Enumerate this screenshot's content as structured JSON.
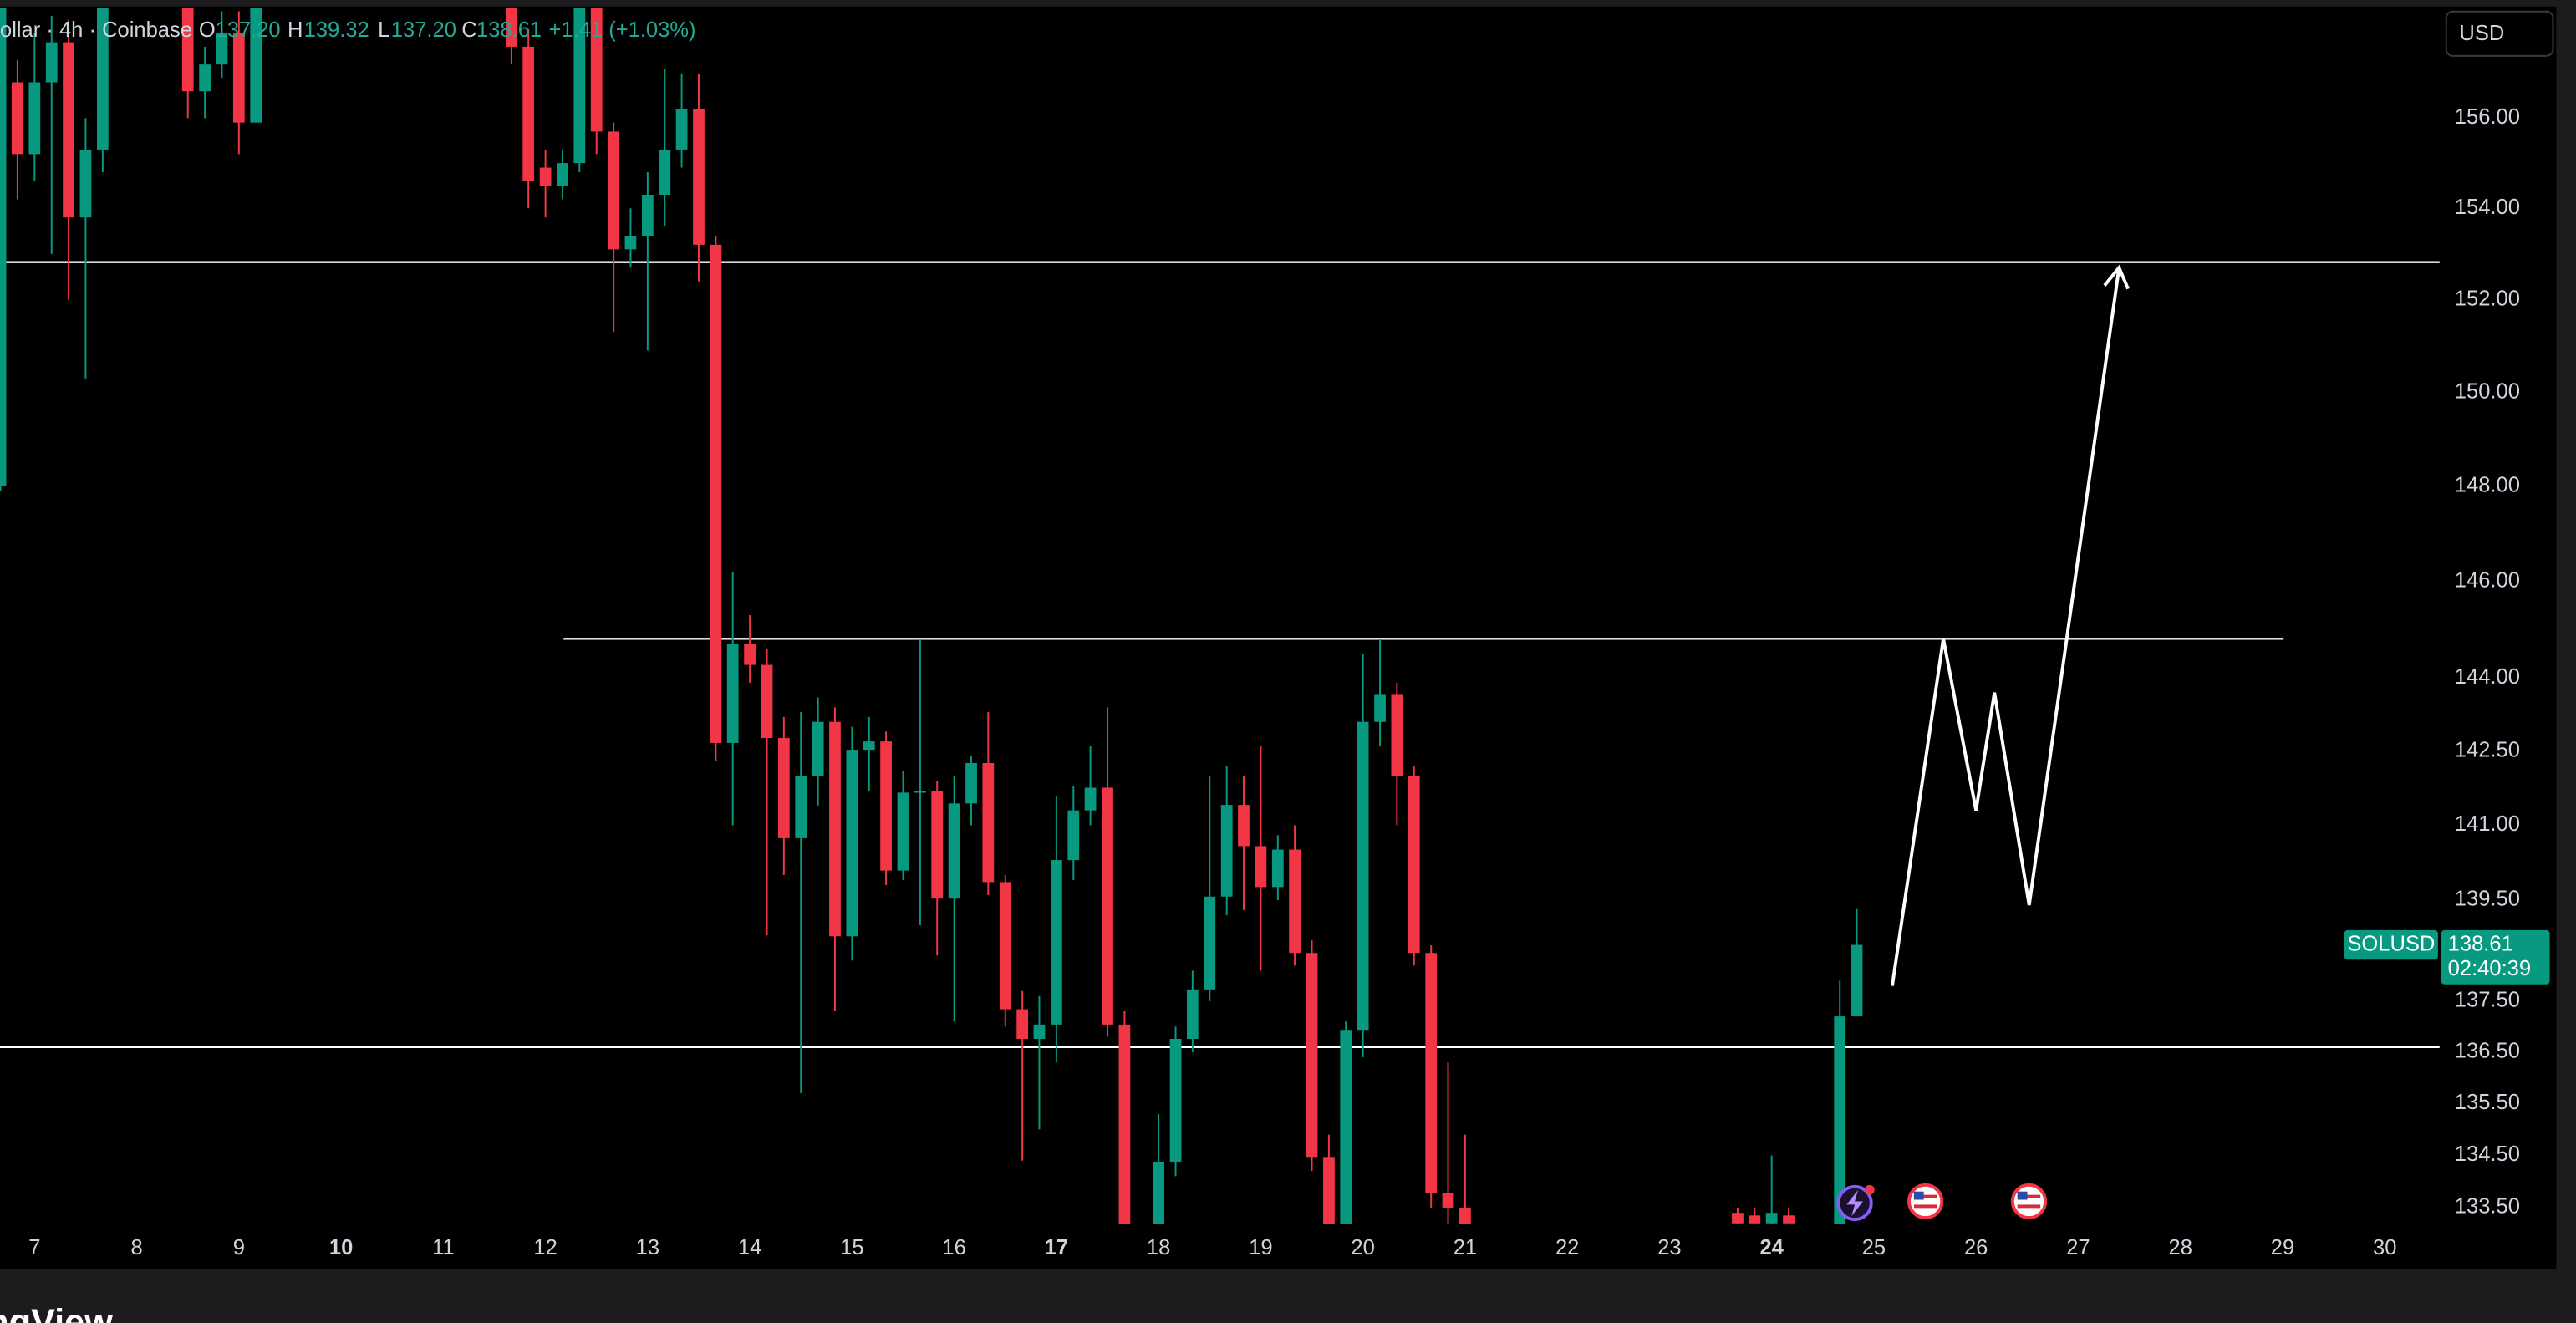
{
  "header": {
    "symbol": "ollar · 4h · Coinbase",
    "ohlc": [
      {
        "key": "O",
        "value": "137.20"
      },
      {
        "key": "H",
        "value": "139.32"
      },
      {
        "key": "L",
        "value": "137.20"
      },
      {
        "key": "C",
        "value": "138.61"
      }
    ],
    "change": "+1.41 (+1.03%)"
  },
  "currency": "USD",
  "footer": "ngView",
  "last_price": {
    "symbol": "SOLUSD",
    "value": 138.61,
    "countdown": "02:40:39"
  },
  "chart_data": {
    "type": "candlestick",
    "log_scale": true,
    "grid": false,
    "up_color": "#089981",
    "down_color": "#f23645",
    "xlim": [
      6.662,
      30.537
    ],
    "xticks": [
      7,
      8,
      9,
      10,
      11,
      12,
      13,
      14,
      15,
      16,
      17,
      18,
      19,
      20,
      21,
      22,
      23,
      24,
      25,
      26,
      27,
      28,
      29,
      30
    ],
    "bold_xticks": [
      10,
      17,
      24
    ],
    "ylim": [
      133.18,
      158.47
    ],
    "yticks": [
      {
        "value": 156,
        "label": "156.00"
      },
      {
        "value": 154,
        "label": "154.00"
      },
      {
        "value": 152,
        "label": "152.00"
      },
      {
        "value": 150,
        "label": "150.00"
      },
      {
        "value": 148,
        "label": "148.00"
      },
      {
        "value": 146,
        "label": "146.00"
      },
      {
        "value": 144,
        "label": "144.00"
      },
      {
        "value": 142.5,
        "label": "142.50"
      },
      {
        "value": 141,
        "label": "141.00"
      },
      {
        "value": 139.5,
        "label": "139.50"
      },
      {
        "value": 137.5,
        "label": "137.50"
      },
      {
        "value": 136.5,
        "label": "136.50"
      },
      {
        "value": 135.5,
        "label": "135.50"
      },
      {
        "value": 134.5,
        "label": "134.50"
      },
      {
        "value": 133.5,
        "label": "133.50"
      }
    ],
    "x": [
      6.667,
      6.833,
      7.0,
      7.167,
      7.333,
      7.5,
      7.667,
      8.5,
      8.667,
      8.833,
      9.0,
      9.167,
      11.667,
      11.833,
      12.0,
      12.167,
      12.333,
      12.5,
      12.667,
      12.833,
      13.0,
      13.167,
      13.333,
      13.5,
      13.667,
      13.833,
      14.0,
      14.167,
      14.333,
      14.5,
      14.667,
      14.833,
      15.0,
      15.167,
      15.333,
      15.5,
      15.667,
      15.833,
      16.0,
      16.167,
      16.333,
      16.5,
      16.667,
      16.833,
      17.0,
      17.167,
      17.333,
      17.5,
      17.667,
      18.0,
      18.167,
      18.333,
      18.5,
      18.667,
      18.833,
      19.0,
      19.167,
      19.333,
      19.5,
      19.667,
      19.833,
      20.0,
      20.167,
      20.333,
      20.5,
      20.667,
      20.833,
      21.0,
      23.667,
      23.833,
      24.0,
      24.167,
      24.667,
      24.833
    ],
    "open": [
      148.0,
      156.8,
      155.2,
      156.8,
      157.7,
      153.8,
      155.3,
      159.0,
      156.6,
      157.2,
      157.9,
      155.9,
      159.0,
      157.6,
      154.9,
      154.5,
      155.0,
      158.9,
      155.7,
      153.1,
      153.4,
      154.3,
      155.3,
      156.2,
      153.2,
      142.67,
      144.71,
      144.27,
      142.77,
      140.74,
      141.99,
      143.1,
      138.78,
      142.53,
      142.7,
      140.09,
      141.66,
      141.69,
      139.53,
      141.44,
      142.26,
      139.86,
      137.34,
      136.76,
      137.04,
      140.3,
      141.3,
      141.76,
      137.04,
      132.8,
      134.38,
      136.76,
      137.73,
      139.57,
      141.41,
      140.58,
      139.76,
      140.51,
      138.45,
      134.47,
      132.8,
      136.92,
      143.1,
      143.67,
      141.99,
      138.45,
      133.78,
      133.5,
      133.4,
      133.35,
      133.2,
      133.35,
      132.9,
      137.2
    ],
    "high": [
      159.5,
      157.3,
      157.9,
      158.3,
      158.2,
      156.0,
      159.5,
      159.5,
      157.6,
      158.4,
      158.4,
      159.5,
      159.5,
      158.0,
      155.3,
      155.3,
      159.3,
      159.3,
      155.9,
      154.0,
      154.8,
      157.1,
      157.0,
      157.0,
      153.4,
      146.2,
      145.3,
      144.6,
      143.2,
      143.3,
      143.6,
      143.4,
      143.0,
      143.2,
      142.9,
      142.1,
      144.8,
      141.9,
      142.0,
      142.4,
      143.3,
      140.0,
      137.7,
      137.6,
      141.6,
      141.8,
      142.6,
      143.4,
      137.3,
      135.3,
      137.0,
      138.1,
      142.0,
      142.2,
      142.0,
      142.6,
      140.8,
      141.0,
      138.7,
      134.9,
      137.1,
      144.5,
      144.8,
      143.9,
      142.2,
      138.6,
      136.3,
      134.9,
      133.5,
      133.5,
      134.5,
      133.5,
      137.9,
      139.32
    ],
    "low": [
      147.9,
      154.2,
      154.6,
      153.0,
      152.0,
      150.3,
      154.8,
      156.0,
      156.0,
      156.9,
      155.2,
      155.9,
      157.2,
      154.0,
      153.8,
      154.2,
      154.8,
      155.2,
      151.3,
      152.7,
      150.9,
      153.6,
      154.9,
      152.4,
      142.3,
      141.0,
      143.9,
      138.8,
      140.0,
      135.7,
      141.4,
      137.3,
      138.3,
      141.7,
      139.8,
      139.9,
      139.0,
      138.4,
      137.1,
      141.0,
      139.6,
      137.0,
      134.4,
      135.0,
      136.3,
      139.9,
      141.0,
      136.8,
      132.5,
      132.5,
      134.1,
      136.5,
      137.5,
      139.2,
      139.3,
      138.1,
      139.5,
      138.2,
      134.2,
      132.5,
      132.5,
      136.4,
      142.6,
      141.0,
      138.2,
      133.5,
      133.0,
      132.8,
      133.0,
      133.0,
      133.0,
      133.0,
      132.8,
      137.2
    ],
    "close": [
      158.9,
      155.2,
      156.8,
      157.7,
      153.8,
      155.3,
      159.0,
      156.6,
      157.2,
      157.9,
      155.9,
      159.0,
      157.6,
      154.6,
      154.5,
      155.0,
      158.9,
      155.7,
      153.1,
      153.4,
      154.3,
      155.3,
      156.2,
      153.2,
      142.67,
      144.71,
      144.27,
      142.77,
      140.74,
      141.99,
      143.1,
      138.78,
      142.53,
      142.7,
      140.09,
      141.66,
      141.69,
      139.53,
      141.44,
      142.26,
      139.86,
      137.34,
      136.76,
      137.04,
      140.3,
      141.3,
      141.76,
      137.04,
      132.8,
      134.38,
      136.76,
      137.73,
      139.57,
      141.41,
      140.58,
      139.76,
      140.51,
      138.45,
      134.47,
      132.8,
      136.92,
      143.1,
      143.67,
      141.99,
      138.45,
      133.78,
      133.5,
      133.19,
      133.2,
      133.2,
      133.4,
      133.2,
      137.2,
      138.61
    ],
    "levels": [
      {
        "value": 152.82
      },
      {
        "value": 144.81,
        "xrange": [
          12.177,
          29.01
        ]
      },
      {
        "value": 136.6
      }
    ],
    "projection": {
      "x": [
        25.18,
        25.68,
        26.0,
        26.18,
        26.52,
        27.4
      ],
      "values": [
        137.8,
        144.81,
        141.3,
        143.7,
        139.4,
        152.7
      ]
    }
  }
}
